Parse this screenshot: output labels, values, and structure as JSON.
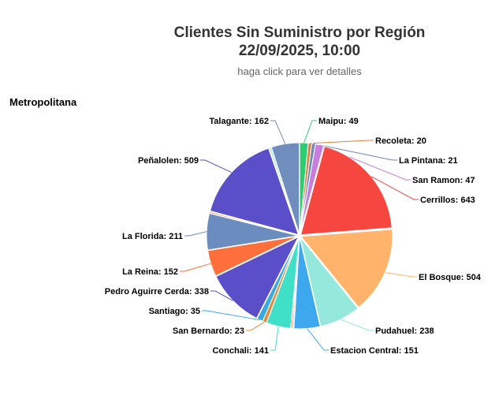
{
  "title_line1": "Clientes Sin Suministro por Región",
  "title_line2": "22/09/2025, 10:00",
  "subtitle": "haga click para ver detalles",
  "region": "Metropolitana",
  "chart_data": {
    "type": "pie",
    "title": "Clientes Sin Suministro por Región 22/09/2025, 10:00",
    "subtitle": "haga click para ver detalles",
    "slices": [
      {
        "name": "Maipu",
        "value": 49,
        "color": "#2ecc71"
      },
      {
        "name": "Recoleta",
        "value": 20,
        "color": "#e08040"
      },
      {
        "name": "La Pintana",
        "value": 21,
        "color": "#6f86b8"
      },
      {
        "name": "San Ramon",
        "value": 47,
        "color": "#c77dde"
      },
      {
        "name": "Cerrillos",
        "value": 643,
        "color": "#f5473f"
      },
      {
        "name": "El Bosque",
        "value": 504,
        "color": "#ffb36b"
      },
      {
        "name": "Pudahuel",
        "value": 238,
        "color": "#94e8dc"
      },
      {
        "name": "Estacion Central",
        "value": 151,
        "color": "#3ea8ef"
      },
      {
        "name": "",
        "value": 8,
        "color": "#cccccc"
      },
      {
        "name": "",
        "value": 8,
        "color": "#e08040"
      },
      {
        "name": "Conchali",
        "value": 141,
        "color": "#40e0c8"
      },
      {
        "name": "San Bernardo",
        "value": 23,
        "color": "#e08a3c"
      },
      {
        "name": "Santiago",
        "value": 35,
        "color": "#36a9e0"
      },
      {
        "name": "Pedro Aguirre Cerda",
        "value": 338,
        "color": "#5a4fc8"
      },
      {
        "name": "La Reina",
        "value": 152,
        "color": "#ff6f3c"
      },
      {
        "name": "La Florida",
        "value": 211,
        "color": "#6b8cbf"
      },
      {
        "name": "",
        "value": 8,
        "color": "#e08040"
      },
      {
        "name": "Peñalolen",
        "value": 509,
        "color": "#5a4fc8"
      },
      {
        "name": "",
        "value": 12,
        "color": "#a8e6e0"
      },
      {
        "name": "Talagante",
        "value": 162,
        "color": "#6f8ebd"
      }
    ]
  }
}
